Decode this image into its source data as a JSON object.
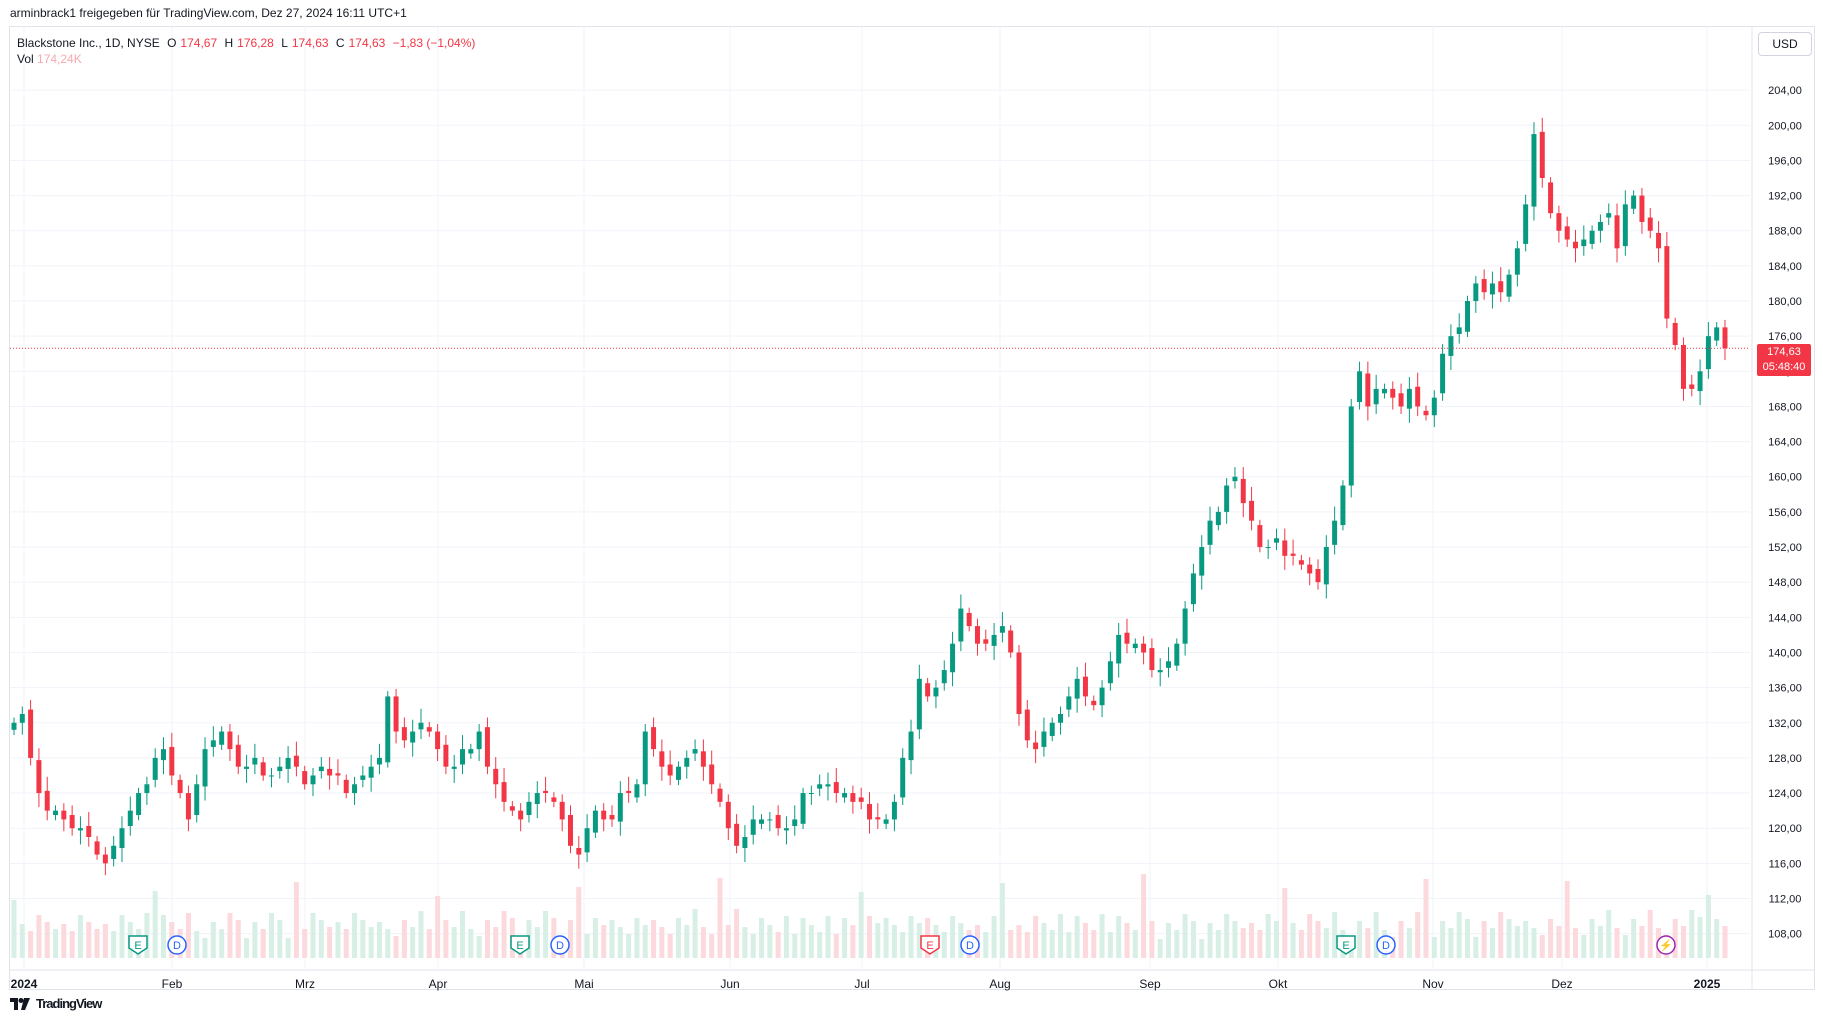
{
  "header": {
    "shared_line": "arminbrack1 freigegeben für TradingView.com, Dez 27, 2024 16:11 UTC+1"
  },
  "legend": {
    "symbol": "Blackstone Inc., 1D, NYSE",
    "o_label": "O",
    "o_value": "174,67",
    "h_label": "H",
    "h_value": "176,28",
    "l_label": "L",
    "l_value": "174,63",
    "c_label": "C",
    "c_value": "174,63",
    "change": "−1,83 (−1,04%)",
    "vol_label": "Vol",
    "vol_value": "174,24K"
  },
  "currency_button": "USD",
  "last_price": {
    "price": "174,63",
    "countdown": "05:48:40"
  },
  "footer": {
    "brand": "TradingView"
  },
  "colors": {
    "up": "#089981",
    "down": "#f23645",
    "up_vol": "#d8efe6",
    "down_vol": "#fbd9dc",
    "grid": "#f0f3fa"
  },
  "chart_data": {
    "type": "candlestick",
    "symbol": "BX",
    "y_axis": {
      "ticks": [
        "108,00",
        "112,00",
        "116,00",
        "120,00",
        "124,00",
        "128,00",
        "132,00",
        "136,00",
        "140,00",
        "144,00",
        "148,00",
        "152,00",
        "156,00",
        "160,00",
        "164,00",
        "168,00",
        "172,00",
        "176,00",
        "180,00",
        "184,00",
        "188,00",
        "192,00",
        "196,00",
        "200,00",
        "204,00"
      ],
      "min": 105,
      "max": 208
    },
    "x_axis": {
      "labels": [
        "2024",
        "Feb",
        "Mrz",
        "Apr",
        "Mai",
        "Jun",
        "Jul",
        "Aug",
        "Sep",
        "Okt",
        "Nov",
        "Dez",
        "2025"
      ]
    },
    "event_markers": [
      "E",
      "D",
      "E",
      "D",
      "E",
      "D",
      "E",
      "D",
      "⚡"
    ],
    "closes": [
      132,
      133,
      128,
      124,
      122,
      122,
      121,
      120,
      120,
      119,
      117,
      116,
      118,
      120,
      122,
      124,
      125,
      128,
      129,
      126,
      124,
      121,
      125,
      129,
      130,
      131,
      129,
      127,
      127,
      128,
      126,
      126,
      127,
      128,
      127,
      125,
      126,
      127,
      126,
      126,
      124,
      125,
      126,
      127,
      128,
      135,
      131,
      130,
      131,
      132,
      131,
      129,
      127,
      127,
      129,
      129,
      131,
      127,
      125,
      123,
      122,
      121,
      123,
      124,
      124,
      123,
      121,
      118,
      117,
      120,
      122,
      121,
      121,
      124,
      124,
      125,
      131,
      129,
      127,
      126,
      127,
      128,
      129,
      127,
      125,
      123,
      120,
      118,
      119,
      121,
      121,
      121,
      120,
      120,
      121,
      124,
      124,
      125,
      125,
      124,
      124,
      123,
      123,
      121,
      121,
      121,
      123,
      128,
      131,
      137,
      135,
      136,
      138,
      141,
      145,
      143,
      141,
      141,
      142,
      143,
      140,
      133,
      130,
      129,
      131,
      132,
      133,
      135,
      137,
      135,
      134,
      136,
      139,
      142,
      141,
      141,
      140,
      138,
      138,
      139,
      141,
      145,
      149,
      152,
      155,
      156,
      159,
      160,
      157,
      155,
      152,
      152,
      153,
      151,
      151,
      150,
      149,
      148,
      152,
      155,
      159,
      168,
      172,
      168,
      170,
      170,
      169,
      168,
      170,
      168,
      167,
      169,
      174,
      176,
      177,
      180,
      182,
      181,
      182,
      181,
      183,
      186,
      191,
      199,
      194,
      190,
      188,
      187,
      186,
      187,
      188,
      189,
      190,
      186,
      191,
      192,
      189,
      188,
      186,
      178,
      175,
      170,
      170,
      172,
      176,
      177,
      174.63
    ]
  }
}
